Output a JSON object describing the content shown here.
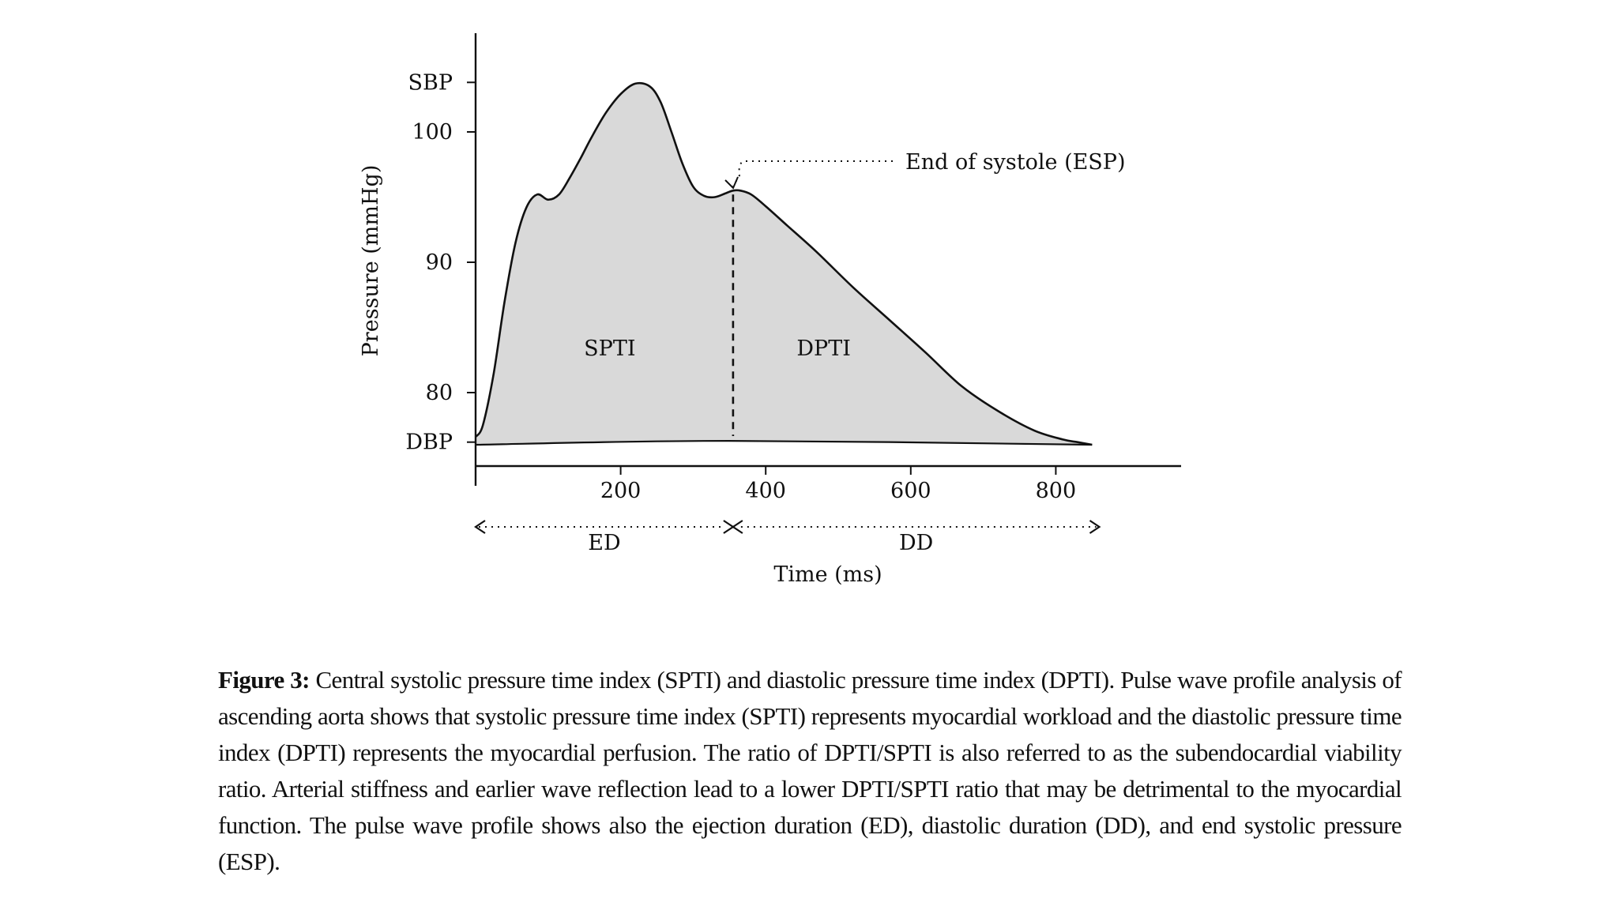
{
  "chart_data": {
    "type": "area",
    "title": "",
    "xlabel": "Time (ms)",
    "ylabel": "Pressure (mmHg)",
    "xlim": [
      0,
      970
    ],
    "ylim": [
      74.2,
      108
    ],
    "xticks": [
      200,
      400,
      600,
      800
    ],
    "yticks": [
      {
        "value": 80,
        "label": "80"
      },
      {
        "value": 90,
        "label": "90"
      },
      {
        "value": 100,
        "label": "100"
      },
      {
        "value": 103.8,
        "label": "SBP"
      },
      {
        "value": 76.2,
        "label": "DBP"
      }
    ],
    "grid": false,
    "legend": "none",
    "series": [
      {
        "x": [
          0,
          10,
          25,
          40,
          55,
          70,
          85,
          100,
          115,
          130,
          145,
          160,
          180,
          200,
          220,
          240,
          255,
          270,
          285,
          300,
          315,
          330,
          345,
          355,
          365,
          380,
          400,
          430,
          470,
          520,
          570,
          620,
          670,
          720,
          770,
          810,
          830,
          850
        ],
        "y": [
          76.6,
          77.5,
          81.5,
          87.0,
          91.5,
          94.2,
          95.2,
          94.8,
          95.2,
          96.5,
          98.0,
          99.6,
          101.5,
          102.9,
          103.7,
          103.5,
          102.3,
          100.0,
          97.6,
          95.8,
          95.1,
          95.0,
          95.3,
          95.5,
          95.5,
          95.2,
          94.3,
          92.8,
          90.8,
          88.1,
          85.6,
          83.1,
          80.5,
          78.6,
          77.1,
          76.4,
          76.2,
          76.0
        ]
      },
      {
        "x": [
          0,
          350,
          850
        ],
        "y": [
          76.0,
          76.3,
          76.0
        ]
      }
    ],
    "annotations": [
      {
        "text": "SPTI",
        "x": 185,
        "y": 83.4
      },
      {
        "text": "DPTI",
        "x": 480,
        "y": 83.4
      },
      {
        "text": "End of systole (ESP)",
        "x": 350,
        "y": 95.5
      },
      {
        "text": "ED",
        "from": 0,
        "to": 355
      },
      {
        "text": "DD",
        "from": 355,
        "to": 860
      }
    ],
    "markers": [
      {
        "type": "dashed-vertical",
        "x": 355
      }
    ]
  },
  "caption": {
    "label": "Figure 3:",
    "text": " Central systolic pressure time index (SPTI) and diastolic pressure time index (DPTI). Pulse wave profile analysis of ascending aorta shows that systolic pressure time index (SPTI) represents myocardial workload and the diastolic pressure time index (DPTI) represents the myocardial perfusion. The ratio of DPTI/SPTI is also referred to as the subendocardial viability ratio. Arterial stiffness and earlier wave reflection lead to a lower DPTI/SPTI ratio that may be detrimental to the myocardial function. The pulse wave profile shows also the ejection duration (ED), diastolic duration (DD), and end systolic pressure (ESP)."
  },
  "colors": {
    "area_fill": "#d9d9d9",
    "line": "#111111"
  }
}
